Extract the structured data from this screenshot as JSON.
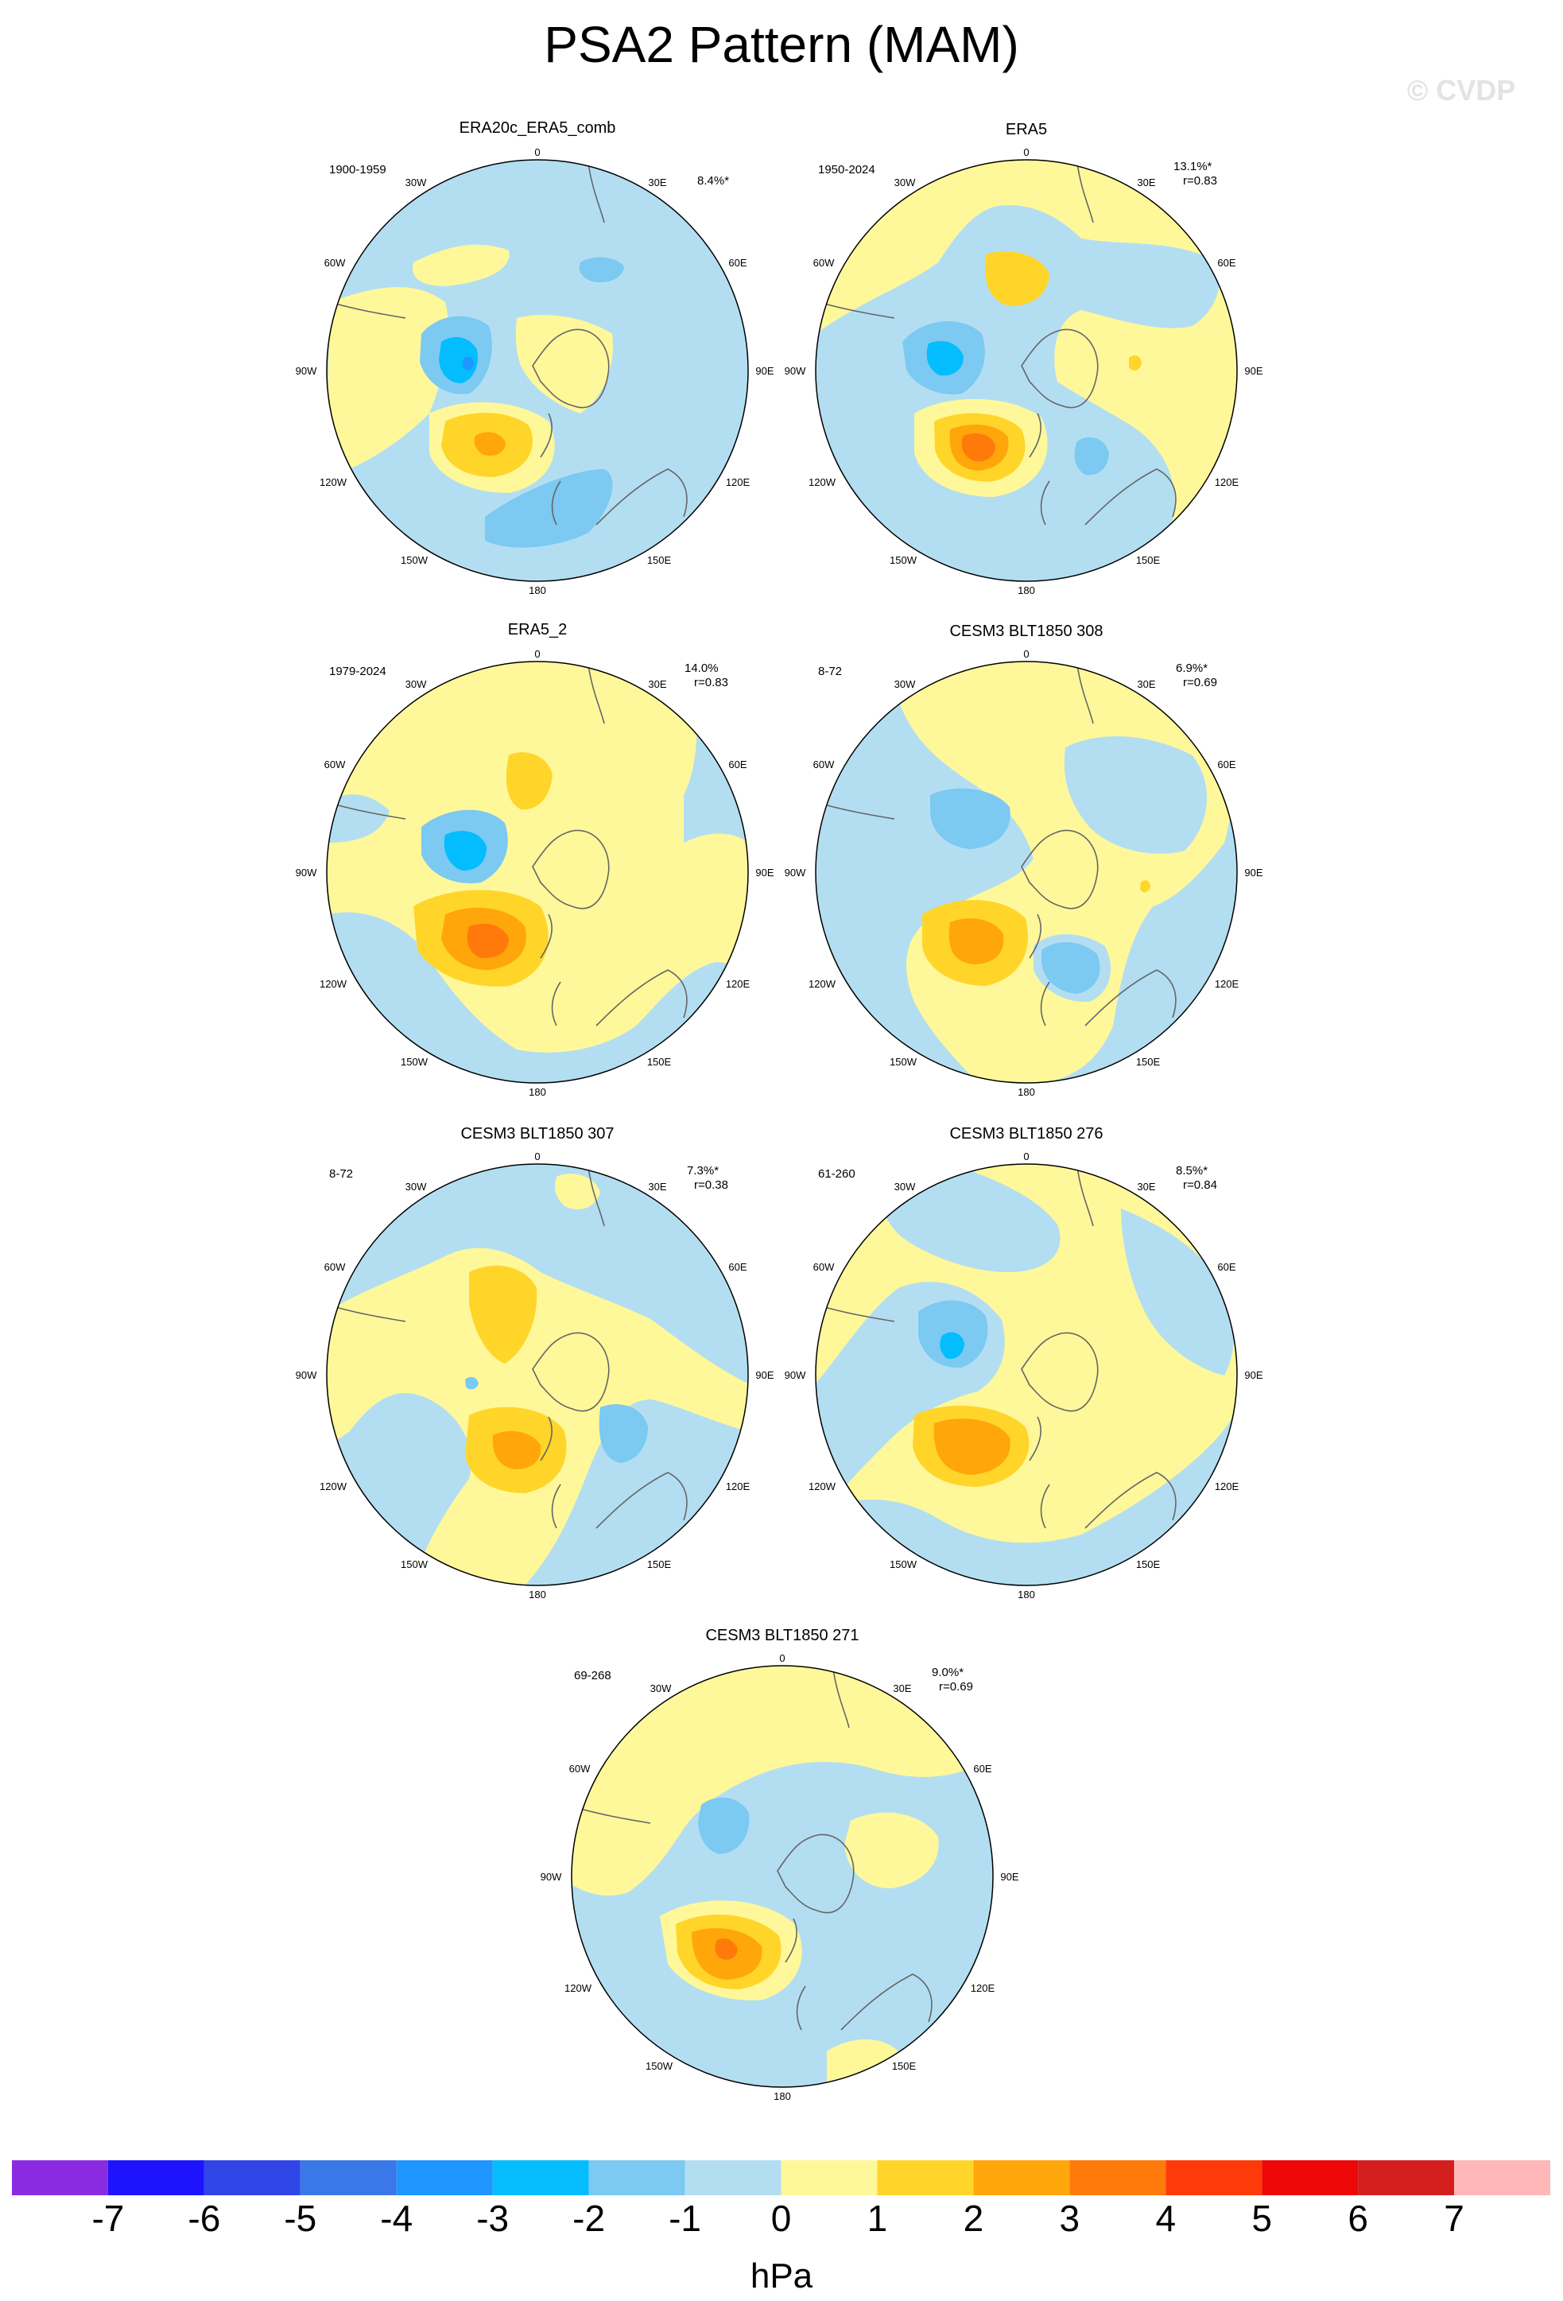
{
  "figure": {
    "title": "PSA2 Pattern (MAM)",
    "watermark": "© CVDP",
    "colorbar_unit": "hPa",
    "colorbar_labels": [
      "-7",
      "-6",
      "-5",
      "-4",
      "-3",
      "-2",
      "-1",
      "0",
      "1",
      "2",
      "3",
      "4",
      "5",
      "6",
      "7"
    ],
    "colorbar_colors": [
      "#8a2be2",
      "#1e13ff",
      "#2f45e6",
      "#3a78e8",
      "#1f96ff",
      "#03bdfe",
      "#7cc9f2",
      "#b3def2",
      "#fff89a",
      "#ffd52a",
      "#ffa60a",
      "#ff7a0a",
      "#ff3a0a",
      "#ee0808",
      "#d41e1e",
      "#ffb7b7"
    ]
  },
  "lon_labels": [
    "0",
    "30E",
    "60E",
    "90E",
    "120E",
    "150E",
    "180",
    "150W",
    "120W",
    "90W",
    "60W",
    "30W"
  ],
  "panels": [
    {
      "title": "ERA20c_ERA5_comb",
      "years": "1900-1959",
      "pct": "8.4%*",
      "r": ""
    },
    {
      "title": "ERA5",
      "years": "1950-2024",
      "pct": "13.1%*",
      "r": "r=0.83"
    },
    {
      "title": "ERA5_2",
      "years": "1979-2024",
      "pct": "14.0%",
      "r": "r=0.83"
    },
    {
      "title": "CESM3 BLT1850 308",
      "years": "8-72",
      "pct": "6.9%*",
      "r": "r=0.69"
    },
    {
      "title": "CESM3 BLT1850 307",
      "years": "8-72",
      "pct": "7.3%*",
      "r": "r=0.38"
    },
    {
      "title": "CESM3 BLT1850 276",
      "years": "61-260",
      "pct": "8.5%*",
      "r": "r=0.84"
    },
    {
      "title": "CESM3 BLT1850 271",
      "years": "69-268",
      "pct": "9.0%*",
      "r": "r=0.69"
    }
  ]
}
